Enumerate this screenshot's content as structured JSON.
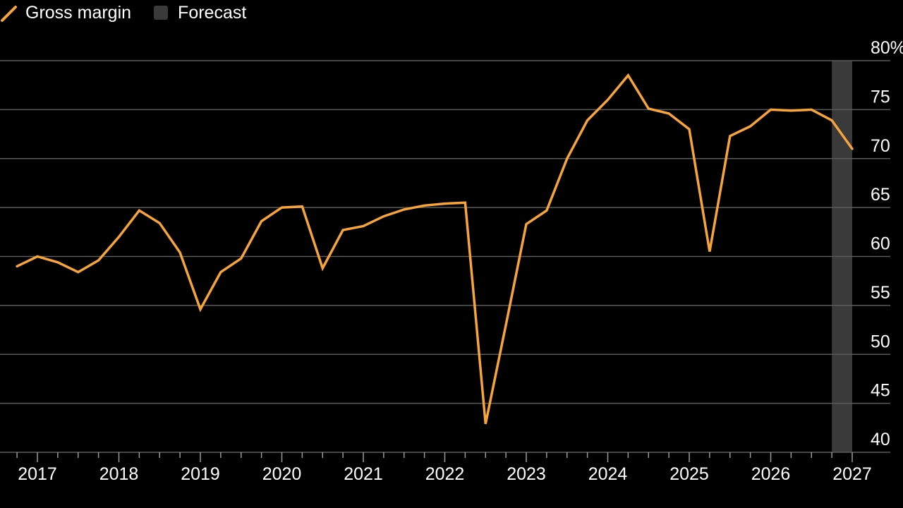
{
  "legend": {
    "series_label": "Gross margin",
    "forecast_label": "Forecast"
  },
  "colors": {
    "background": "#000000",
    "line": "#f7a43a",
    "grid": "#5a5a5a",
    "forecast_band": "#3a3a3a",
    "text": "#ffffff"
  },
  "chart_data": {
    "type": "line",
    "title": "",
    "xlabel": "",
    "ylabel": "",
    "ylim": [
      40,
      80
    ],
    "y_ticks": [
      40,
      45,
      50,
      55,
      60,
      65,
      70,
      75,
      80
    ],
    "y_tick_labels": [
      "40",
      "45",
      "50",
      "55",
      "60",
      "65",
      "70",
      "75",
      "80%"
    ],
    "x_ticks": [
      2017,
      2018,
      2019,
      2020,
      2021,
      2022,
      2023,
      2024,
      2025,
      2026,
      2027
    ],
    "x_tick_labels": [
      "2017",
      "2018",
      "2019",
      "2020",
      "2021",
      "2022",
      "2023",
      "2024",
      "2025",
      "2026",
      "2027"
    ],
    "grid": true,
    "legend_position": "top-left",
    "forecast_range": [
      2026.75,
      2027
    ],
    "series": [
      {
        "name": "Gross margin",
        "x": [
          2016.75,
          2017.0,
          2017.25,
          2017.5,
          2017.75,
          2018.0,
          2018.25,
          2018.5,
          2018.75,
          2019.0,
          2019.25,
          2019.5,
          2019.75,
          2020.0,
          2020.25,
          2020.5,
          2020.75,
          2021.0,
          2021.25,
          2021.5,
          2021.75,
          2022.0,
          2022.25,
          2022.5,
          2022.75,
          2023.0,
          2023.25,
          2023.5,
          2023.75,
          2024.0,
          2024.25,
          2024.5,
          2024.75,
          2025.0,
          2025.25,
          2025.5,
          2025.75,
          2026.0,
          2026.25,
          2026.5,
          2026.75,
          2027.0
        ],
        "values": [
          59.0,
          60.0,
          59.4,
          58.4,
          59.6,
          62.0,
          64.7,
          63.4,
          60.4,
          54.6,
          58.4,
          59.8,
          63.6,
          65.0,
          65.1,
          58.8,
          62.7,
          63.1,
          64.1,
          64.8,
          65.2,
          65.4,
          65.5,
          42.9,
          53.0,
          63.3,
          64.7,
          70.0,
          73.9,
          76.0,
          78.5,
          75.1,
          74.6,
          73.0,
          60.5,
          72.3,
          73.3,
          75.0,
          74.9,
          75.0,
          73.9,
          71.0
        ]
      }
    ]
  }
}
